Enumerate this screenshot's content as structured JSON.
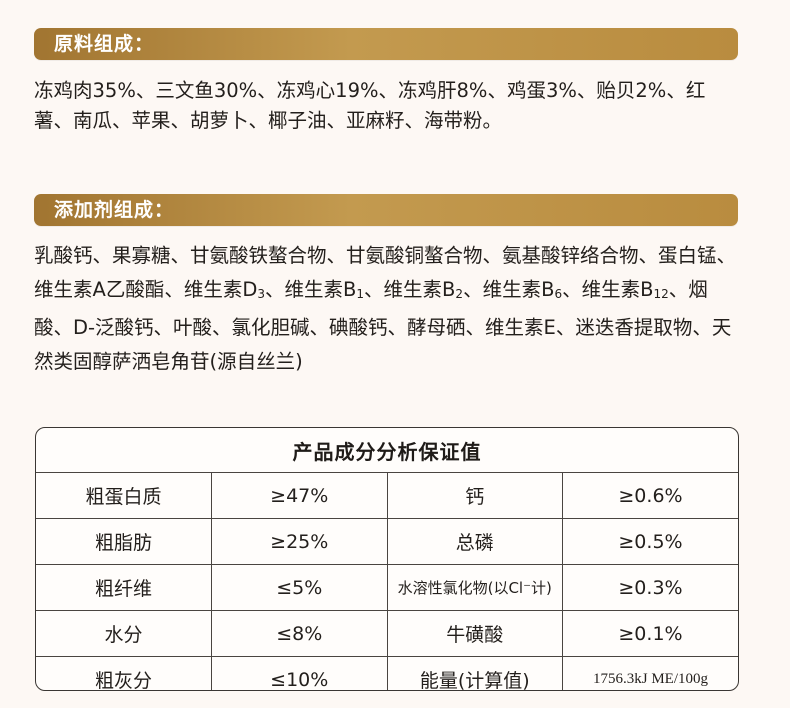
{
  "ingredients": {
    "title": "原料组成：",
    "text": "冻鸡肉35%、三文鱼30%、冻鸡心19%、冻鸡肝8%、鸡蛋3%、贻贝2%、红薯、南瓜、苹果、胡萝卜、椰子油、亚麻籽、海带粉。"
  },
  "additives": {
    "title": "添加剂组成：",
    "segments": [
      {
        "t": "乳酸钙、果寡糖、甘氨酸铁螯合物、甘氨酸铜螯合物、氨基酸锌络合物、蛋白锰、维生素A乙酸酯、维生素D"
      },
      {
        "sub": "3"
      },
      {
        "t": "、维生素B"
      },
      {
        "sub": "1"
      },
      {
        "t": "、维生素B"
      },
      {
        "sub": "2"
      },
      {
        "t": "、维生素B"
      },
      {
        "sub": "6"
      },
      {
        "t": "、维生素B"
      },
      {
        "sub": "12"
      },
      {
        "t": "、烟酸、D-泛酸钙、叶酸、氯化胆碱、碘酸钙、酵母硒、维生素E、迷迭香提取物、天然类固醇萨洒皂角苷(源自丝兰)"
      }
    ]
  },
  "analysis": {
    "title": "产品成分分析保证值",
    "rows": [
      {
        "name1": "粗蛋白质",
        "value1": "≥47%",
        "name2": "钙",
        "value2": "≥0.6%"
      },
      {
        "name1": "粗脂肪",
        "value1": "≥25%",
        "name2": "总磷",
        "value2": "≥0.5%"
      },
      {
        "name1": "粗纤维",
        "value1": "≤5%",
        "name2": "水溶性氯化物(以Cl⁻计)",
        "value2": "≥0.3%"
      },
      {
        "name1": "水分",
        "value1": "≤8%",
        "name2": "牛磺酸",
        "value2": "≥0.1%"
      },
      {
        "name1": "粗灰分",
        "value1": "≤10%",
        "name2": "能量(计算值)",
        "value2": "1756.3kJ ME/100g"
      }
    ]
  }
}
